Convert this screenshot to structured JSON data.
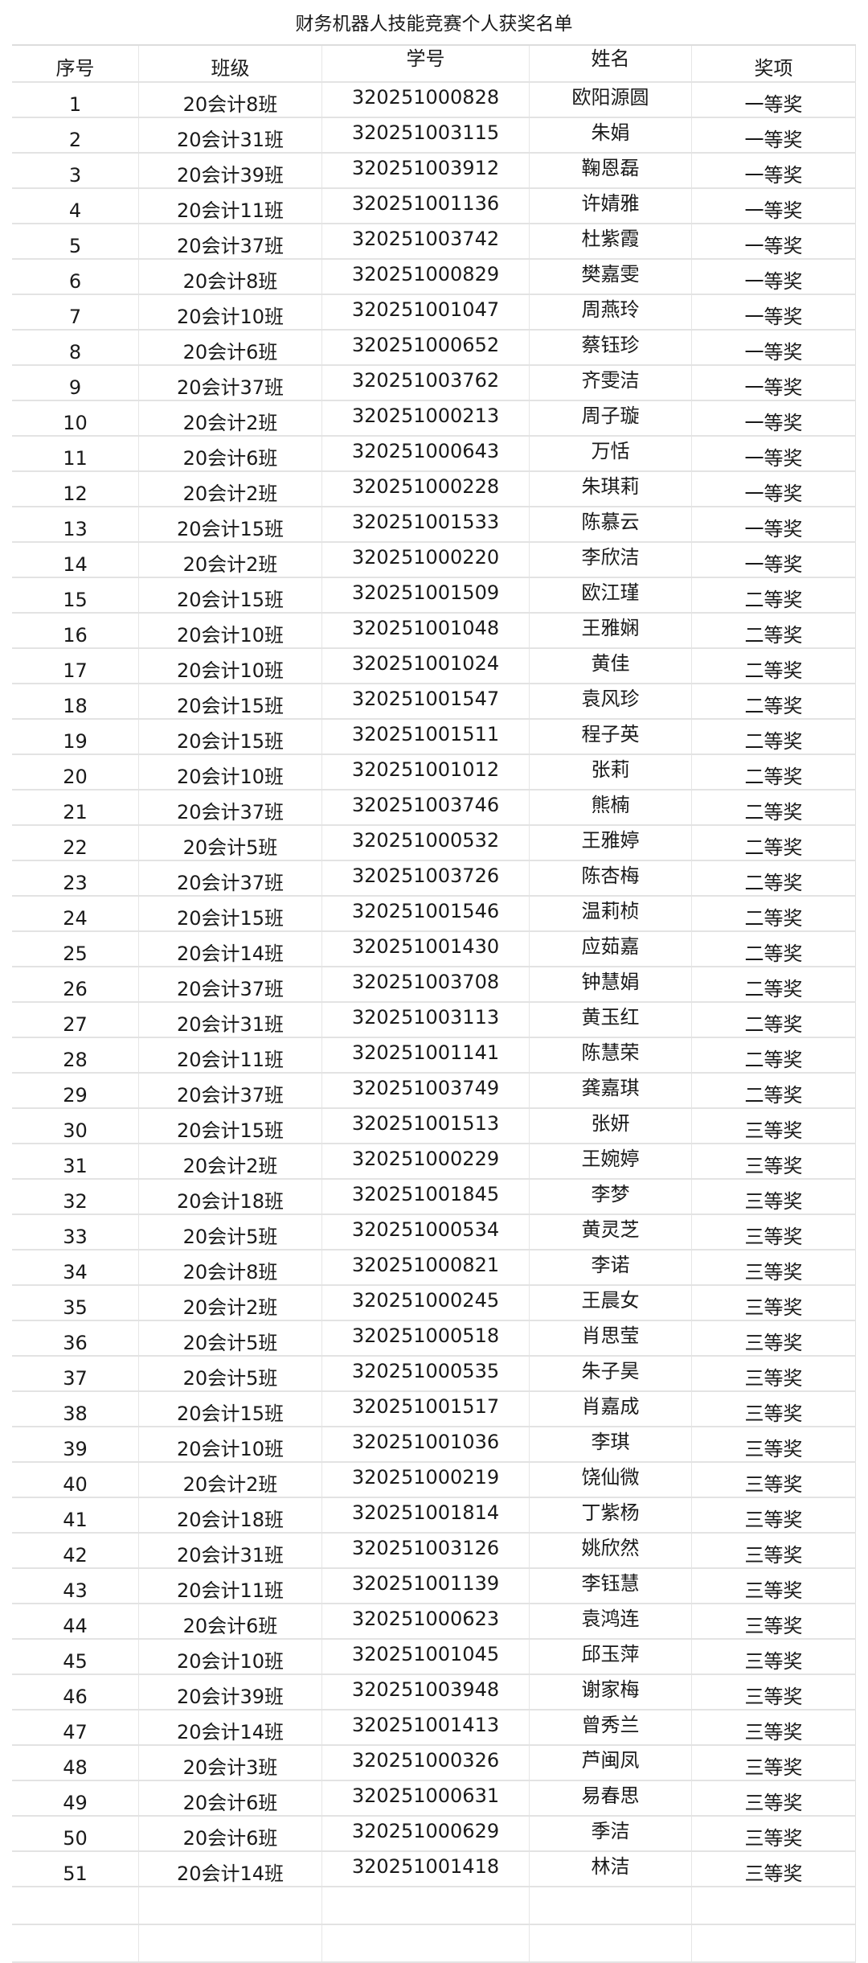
{
  "title": "财务机器人技能竞赛个人获奖名单",
  "columns": [
    "序号",
    "班级",
    "学号",
    "姓名",
    "奖项"
  ],
  "rows": [
    [
      "1",
      "20会计8班",
      "320251000828",
      "欧阳源圆",
      "一等奖"
    ],
    [
      "2",
      "20会计31班",
      "320251003115",
      "朱娟",
      "一等奖"
    ],
    [
      "3",
      "20会计39班",
      "320251003912",
      "鞠恩磊",
      "一等奖"
    ],
    [
      "4",
      "20会计11班",
      "320251001136",
      "许婧雅",
      "一等奖"
    ],
    [
      "5",
      "20会计37班",
      "320251003742",
      "杜紫霞",
      "一等奖"
    ],
    [
      "6",
      "20会计8班",
      "320251000829",
      "樊嘉雯",
      "一等奖"
    ],
    [
      "7",
      "20会计10班",
      "320251001047",
      "周燕玲",
      "一等奖"
    ],
    [
      "8",
      "20会计6班",
      "320251000652",
      "蔡钰珍",
      "一等奖"
    ],
    [
      "9",
      "20会计37班",
      "320251003762",
      "齐雯洁",
      "一等奖"
    ],
    [
      "10",
      "20会计2班",
      "320251000213",
      "周子璇",
      "一等奖"
    ],
    [
      "11",
      "20会计6班",
      "320251000643",
      "万恬",
      "一等奖"
    ],
    [
      "12",
      "20会计2班",
      "320251000228",
      "朱琪莉",
      "一等奖"
    ],
    [
      "13",
      "20会计15班",
      "320251001533",
      "陈慕云",
      "一等奖"
    ],
    [
      "14",
      "20会计2班",
      "320251000220",
      "李欣洁",
      "一等奖"
    ],
    [
      "15",
      "20会计15班",
      "320251001509",
      "欧江瑾",
      "二等奖"
    ],
    [
      "16",
      "20会计10班",
      "320251001048",
      "王雅娴",
      "二等奖"
    ],
    [
      "17",
      "20会计10班",
      "320251001024",
      "黄佳",
      "二等奖"
    ],
    [
      "18",
      "20会计15班",
      "320251001547",
      "袁风珍",
      "二等奖"
    ],
    [
      "19",
      "20会计15班",
      "320251001511",
      "程子英",
      "二等奖"
    ],
    [
      "20",
      "20会计10班",
      "320251001012",
      "张莉",
      "二等奖"
    ],
    [
      "21",
      "20会计37班",
      "320251003746",
      "熊楠",
      "二等奖"
    ],
    [
      "22",
      "20会计5班",
      "320251000532",
      "王雅婷",
      "二等奖"
    ],
    [
      "23",
      "20会计37班",
      "320251003726",
      "陈杏梅",
      "二等奖"
    ],
    [
      "24",
      "20会计15班",
      "320251001546",
      "温莉桢",
      "二等奖"
    ],
    [
      "25",
      "20会计14班",
      "320251001430",
      "应茹嘉",
      "二等奖"
    ],
    [
      "26",
      "20会计37班",
      "320251003708",
      "钟慧娟",
      "二等奖"
    ],
    [
      "27",
      "20会计31班",
      "320251003113",
      "黄玉红",
      "二等奖"
    ],
    [
      "28",
      "20会计11班",
      "320251001141",
      "陈慧荣",
      "二等奖"
    ],
    [
      "29",
      "20会计37班",
      "320251003749",
      "龚嘉琪",
      "二等奖"
    ],
    [
      "30",
      "20会计15班",
      "320251001513",
      "张妍",
      "三等奖"
    ],
    [
      "31",
      "20会计2班",
      "320251000229",
      "王婉婷",
      "三等奖"
    ],
    [
      "32",
      "20会计18班",
      "320251001845",
      "李梦",
      "三等奖"
    ],
    [
      "33",
      "20会计5班",
      "320251000534",
      "黄灵芝",
      "三等奖"
    ],
    [
      "34",
      "20会计8班",
      "320251000821",
      "李诺",
      "三等奖"
    ],
    [
      "35",
      "20会计2班",
      "320251000245",
      "王晨女",
      "三等奖"
    ],
    [
      "36",
      "20会计5班",
      "320251000518",
      "肖思莹",
      "三等奖"
    ],
    [
      "37",
      "20会计5班",
      "320251000535",
      "朱子昊",
      "三等奖"
    ],
    [
      "38",
      "20会计15班",
      "320251001517",
      "肖嘉成",
      "三等奖"
    ],
    [
      "39",
      "20会计10班",
      "320251001036",
      "李琪",
      "三等奖"
    ],
    [
      "40",
      "20会计2班",
      "320251000219",
      "饶仙微",
      "三等奖"
    ],
    [
      "41",
      "20会计18班",
      "320251001814",
      "丁紫杨",
      "三等奖"
    ],
    [
      "42",
      "20会计31班",
      "320251003126",
      "姚欣然",
      "三等奖"
    ],
    [
      "43",
      "20会计11班",
      "320251001139",
      "李钰慧",
      "三等奖"
    ],
    [
      "44",
      "20会计6班",
      "320251000623",
      "袁鸿连",
      "三等奖"
    ],
    [
      "45",
      "20会计10班",
      "320251001045",
      "邱玉萍",
      "三等奖"
    ],
    [
      "46",
      "20会计39班",
      "320251003948",
      "谢家梅",
      "三等奖"
    ],
    [
      "47",
      "20会计14班",
      "320251001413",
      "曾秀兰",
      "三等奖"
    ],
    [
      "48",
      "20会计3班",
      "320251000326",
      "芦闽凤",
      "三等奖"
    ],
    [
      "49",
      "20会计6班",
      "320251000631",
      "易春思",
      "三等奖"
    ],
    [
      "50",
      "20会计6班",
      "320251000629",
      "季洁",
      "三等奖"
    ],
    [
      "51",
      "20会计14班",
      "320251001418",
      "林洁",
      "三等奖"
    ]
  ]
}
